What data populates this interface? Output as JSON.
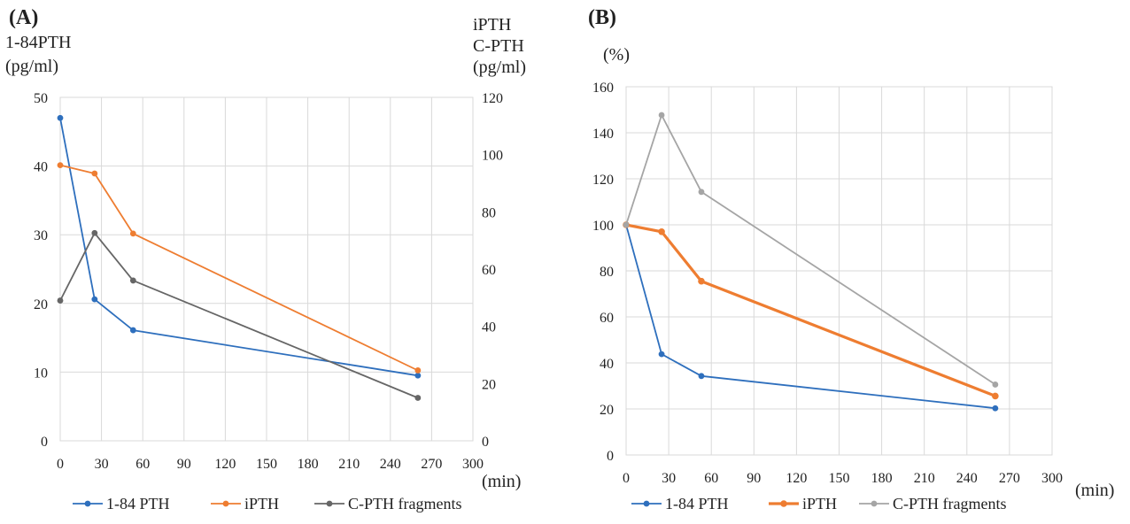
{
  "chart_data": [
    {
      "type": "line",
      "panel_label": "(A)",
      "left_axis_title_lines": [
        "1-84PTH",
        "(pg/ml)"
      ],
      "right_axis_title_lines": [
        "iPTH",
        "C-PTH",
        "(pg/ml)"
      ],
      "x_unit": "(min)",
      "xlim": [
        0,
        300
      ],
      "xticks": [
        0,
        30,
        60,
        90,
        120,
        150,
        180,
        210,
        240,
        270,
        300
      ],
      "ylim_left": [
        0,
        50
      ],
      "yticks_left": [
        0,
        10,
        20,
        30,
        40,
        50
      ],
      "ylim_right": [
        0,
        120
      ],
      "yticks_right": [
        0,
        20,
        40,
        60,
        80,
        100,
        120
      ],
      "grid": true,
      "legend_position": "bottom",
      "series": [
        {
          "name": "1-84 PTH",
          "axis": "left",
          "color": "#2e6fbd",
          "x": [
            0,
            25,
            53,
            260
          ],
          "y": [
            47,
            20.6,
            16.1,
            9.5
          ]
        },
        {
          "name": "iPTH",
          "axis": "right",
          "color": "#ee7d31",
          "x": [
            0,
            25,
            53,
            260
          ],
          "y": [
            96.3,
            93.4,
            72.4,
            24.6
          ]
        },
        {
          "name": "C-PTH fragments",
          "axis": "right",
          "color": "#666666",
          "x": [
            0,
            25,
            53,
            260
          ],
          "y": [
            49,
            72.6,
            56,
            15
          ]
        }
      ]
    },
    {
      "type": "line",
      "panel_label": "(B)",
      "left_axis_title_lines": [
        "(%)"
      ],
      "x_unit": "(min)",
      "xlim": [
        0,
        300
      ],
      "xticks": [
        0,
        30,
        60,
        90,
        120,
        150,
        180,
        210,
        240,
        270,
        300
      ],
      "ylim_left": [
        0,
        160
      ],
      "yticks_left": [
        0,
        20,
        40,
        60,
        80,
        100,
        120,
        140,
        160
      ],
      "grid": true,
      "legend_position": "bottom",
      "series": [
        {
          "name": "1-84 PTH",
          "axis": "left",
          "color": "#2e6fbd",
          "x": [
            0,
            25,
            53,
            260
          ],
          "y": [
            100,
            43.8,
            34.3,
            20.3
          ]
        },
        {
          "name": "iPTH",
          "axis": "left",
          "color": "#ee7d31",
          "bold": true,
          "x": [
            0,
            25,
            53,
            260
          ],
          "y": [
            100,
            97,
            75.5,
            25.6
          ]
        },
        {
          "name": "C-PTH fragments",
          "axis": "left",
          "color": "#a5a5a5",
          "x": [
            0,
            25,
            53,
            260
          ],
          "y": [
            100,
            147.7,
            114.3,
            30.6
          ]
        }
      ]
    }
  ]
}
